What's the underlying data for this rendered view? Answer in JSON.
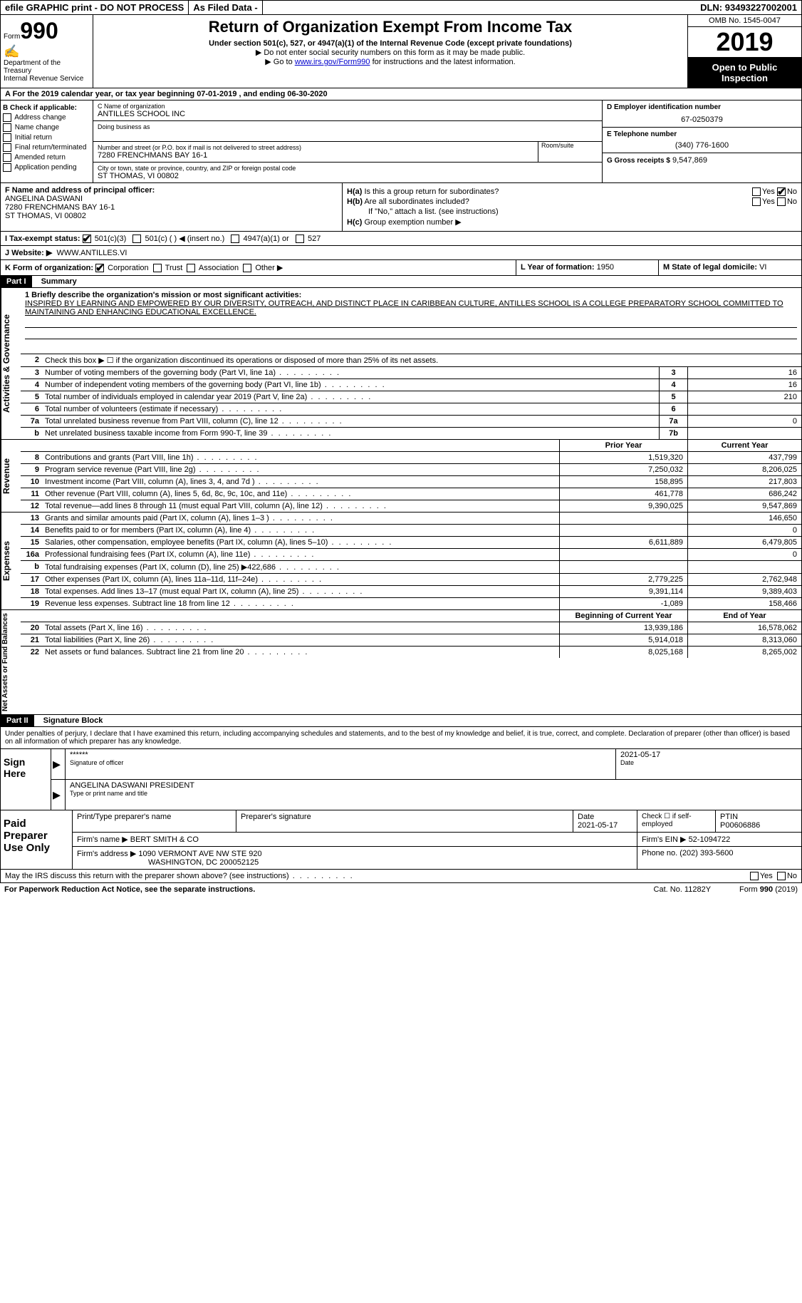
{
  "topbar": {
    "efile": "efile GRAPHIC print - DO NOT PROCESS",
    "asfiled": "As Filed Data -",
    "dln_label": "DLN:",
    "dln": "93493227002001"
  },
  "header": {
    "form_label": "Form",
    "form_num": "990",
    "dept": "Department of the Treasury\nInternal Revenue Service",
    "title": "Return of Organization Exempt From Income Tax",
    "sub": "Under section 501(c), 527, or 4947(a)(1) of the Internal Revenue Code (except private foundations)",
    "note1": "▶ Do not enter social security numbers on this form as it may be made public.",
    "note2_pre": "▶ Go to ",
    "note2_link": "www.irs.gov/Form990",
    "note2_post": " for instructions and the latest information.",
    "omb": "OMB No. 1545-0047",
    "year": "2019",
    "open": "Open to Public Inspection"
  },
  "row_a": "A  For the 2019 calendar year, or tax year beginning 07-01-2019  , and ending 06-30-2020",
  "col_b": {
    "title": "B Check if applicable:",
    "items": [
      "Address change",
      "Name change",
      "Initial return",
      "Final return/terminated",
      "Amended return",
      "Application pending"
    ]
  },
  "col_c": {
    "name_label": "C Name of organization",
    "name": "ANTILLES SCHOOL INC",
    "dba_label": "Doing business as",
    "street_label": "Number and street (or P.O. box if mail is not delivered to street address)",
    "room_label": "Room/suite",
    "street": "7280 FRENCHMANS BAY 16-1",
    "city_label": "City or town, state or province, country, and ZIP or foreign postal code",
    "city": "ST THOMAS, VI  00802"
  },
  "col_d": {
    "ein_label": "D Employer identification number",
    "ein": "67-0250379",
    "phone_label": "E Telephone number",
    "phone": "(340) 776-1600",
    "gross_label": "G Gross receipts $",
    "gross": "9,547,869"
  },
  "f": {
    "label": "F  Name and address of principal officer:",
    "name": "ANGELINA DASWANI",
    "street": "7280 FRENCHMANS BAY 16-1",
    "city": "ST THOMAS, VI  00802"
  },
  "h": {
    "a_label": "H(a)",
    "a_text": "Is this a group return for subordinates?",
    "b_label": "H(b)",
    "b_text": "Are all subordinates included?",
    "b_note": "If \"No,\" attach a list. (see instructions)",
    "c_label": "H(c)",
    "c_text": "Group exemption number ▶",
    "yes": "Yes",
    "no": "No"
  },
  "i": {
    "label": "I  Tax-exempt status:",
    "opts": [
      "501(c)(3)",
      "501(c) (  ) ◀ (insert no.)",
      "4947(a)(1) or",
      "527"
    ]
  },
  "j": {
    "label": "J  Website: ▶",
    "val": "WWW.ANTILLES.VI"
  },
  "k": {
    "label": "K Form of organization:",
    "opts": [
      "Corporation",
      "Trust",
      "Association",
      "Other ▶"
    ]
  },
  "l": {
    "label": "L Year of formation:",
    "val": "1950"
  },
  "m": {
    "label": "M State of legal domicile:",
    "val": "VI"
  },
  "part1": {
    "label": "Part I",
    "title": "Summary",
    "mission_label": "1 Briefly describe the organization's mission or most significant activities:",
    "mission": "INSPIRED BY LEARNING AND EMPOWERED BY OUR DIVERSITY, OUTREACH, AND DISTINCT PLACE IN CARIBBEAN CULTURE, ANTILLES SCHOOL IS A COLLEGE PREPARATORY SCHOOL COMMITTED TO MAINTAINING AND ENHANCING EDUCATIONAL EXCELLENCE.",
    "line2": "Check this box ▶ ☐ if the organization discontinued its operations or disposed of more than 25% of its net assets.",
    "tabs": {
      "gov": "Activities & Governance",
      "rev": "Revenue",
      "exp": "Expenses",
      "net": "Net Assets or Fund Balances"
    },
    "gov_lines": [
      {
        "n": "3",
        "d": "Number of voting members of the governing body (Part VI, line 1a)",
        "b": "3",
        "v": "16"
      },
      {
        "n": "4",
        "d": "Number of independent voting members of the governing body (Part VI, line 1b)",
        "b": "4",
        "v": "16"
      },
      {
        "n": "5",
        "d": "Total number of individuals employed in calendar year 2019 (Part V, line 2a)",
        "b": "5",
        "v": "210"
      },
      {
        "n": "6",
        "d": "Total number of volunteers (estimate if necessary)",
        "b": "6",
        "v": ""
      },
      {
        "n": "7a",
        "d": "Total unrelated business revenue from Part VIII, column (C), line 12",
        "b": "7a",
        "v": "0"
      },
      {
        "n": "b",
        "d": "Net unrelated business taxable income from Form 990-T, line 39",
        "b": "7b",
        "v": ""
      }
    ],
    "col_prior": "Prior Year",
    "col_current": "Current Year",
    "rev_lines": [
      {
        "n": "8",
        "d": "Contributions and grants (Part VIII, line 1h)",
        "p": "1,519,320",
        "c": "437,799"
      },
      {
        "n": "9",
        "d": "Program service revenue (Part VIII, line 2g)",
        "p": "7,250,032",
        "c": "8,206,025"
      },
      {
        "n": "10",
        "d": "Investment income (Part VIII, column (A), lines 3, 4, and 7d )",
        "p": "158,895",
        "c": "217,803"
      },
      {
        "n": "11",
        "d": "Other revenue (Part VIII, column (A), lines 5, 6d, 8c, 9c, 10c, and 11e)",
        "p": "461,778",
        "c": "686,242"
      },
      {
        "n": "12",
        "d": "Total revenue—add lines 8 through 11 (must equal Part VIII, column (A), line 12)",
        "p": "9,390,025",
        "c": "9,547,869"
      }
    ],
    "exp_lines": [
      {
        "n": "13",
        "d": "Grants and similar amounts paid (Part IX, column (A), lines 1–3 )",
        "p": "",
        "c": "146,650"
      },
      {
        "n": "14",
        "d": "Benefits paid to or for members (Part IX, column (A), line 4)",
        "p": "",
        "c": "0"
      },
      {
        "n": "15",
        "d": "Salaries, other compensation, employee benefits (Part IX, column (A), lines 5–10)",
        "p": "6,611,889",
        "c": "6,479,805"
      },
      {
        "n": "16a",
        "d": "Professional fundraising fees (Part IX, column (A), line 11e)",
        "p": "",
        "c": "0"
      },
      {
        "n": "b",
        "d": "Total fundraising expenses (Part IX, column (D), line 25) ▶422,686",
        "p": "",
        "c": ""
      },
      {
        "n": "17",
        "d": "Other expenses (Part IX, column (A), lines 11a–11d, 11f–24e)",
        "p": "2,779,225",
        "c": "2,762,948"
      },
      {
        "n": "18",
        "d": "Total expenses. Add lines 13–17 (must equal Part IX, column (A), line 25)",
        "p": "9,391,114",
        "c": "9,389,403"
      },
      {
        "n": "19",
        "d": "Revenue less expenses. Subtract line 18 from line 12",
        "p": "-1,089",
        "c": "158,466"
      }
    ],
    "col_begin": "Beginning of Current Year",
    "col_end": "End of Year",
    "net_lines": [
      {
        "n": "20",
        "d": "Total assets (Part X, line 16)",
        "p": "13,939,186",
        "c": "16,578,062"
      },
      {
        "n": "21",
        "d": "Total liabilities (Part X, line 26)",
        "p": "5,914,018",
        "c": "8,313,060"
      },
      {
        "n": "22",
        "d": "Net assets or fund balances. Subtract line 21 from line 20",
        "p": "8,025,168",
        "c": "8,265,002"
      }
    ]
  },
  "part2": {
    "label": "Part II",
    "title": "Signature Block",
    "intro": "Under penalties of perjury, I declare that I have examined this return, including accompanying schedules and statements, and to the best of my knowledge and belief, it is true, correct, and complete. Declaration of preparer (other than officer) is based on all information of which preparer has any knowledge.",
    "sign_here": "Sign Here",
    "sig_stars": "******",
    "sig_officer_label": "Signature of officer",
    "sig_date": "2021-05-17",
    "sig_date_label": "Date",
    "officer_name": "ANGELINA DASWANI PRESIDENT",
    "officer_name_label": "Type or print name and title",
    "paid": "Paid Preparer Use Only",
    "prep_name_label": "Print/Type preparer's name",
    "prep_sig_label": "Preparer's signature",
    "prep_date_label": "Date",
    "prep_date": "2021-05-17",
    "prep_check": "Check ☐ if self-employed",
    "ptin_label": "PTIN",
    "ptin": "P00606886",
    "firm_name_label": "Firm's name    ▶",
    "firm_name": "BERT SMITH & CO",
    "firm_ein_label": "Firm's EIN ▶",
    "firm_ein": "52-1094722",
    "firm_addr_label": "Firm's address ▶",
    "firm_addr1": "1090 VERMONT AVE NW STE 920",
    "firm_addr2": "WASHINGTON, DC  200052125",
    "firm_phone_label": "Phone no.",
    "firm_phone": "(202) 393-5600"
  },
  "footer": {
    "discuss": "May the IRS discuss this return with the preparer shown above? (see instructions)",
    "paperwork": "For Paperwork Reduction Act Notice, see the separate instructions.",
    "cat": "Cat. No. 11282Y",
    "form": "Form 990 (2019)",
    "yes": "Yes",
    "no": "No"
  }
}
